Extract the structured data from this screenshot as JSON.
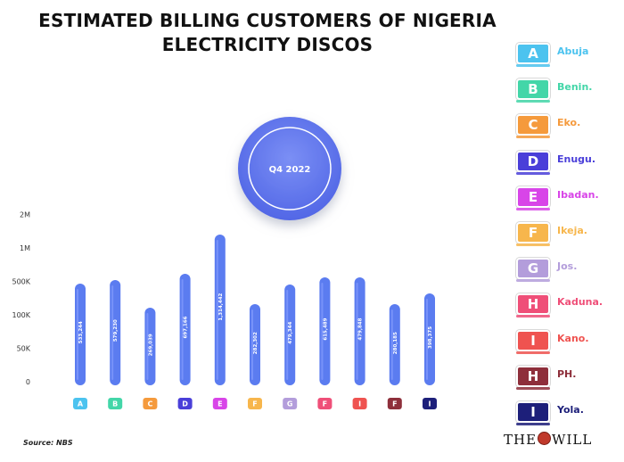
{
  "header": {
    "title_line1": "ESTIMATED BILLING CUSTOMERS OF NIGERIA",
    "title_line2": "ELECTRICITY DISCOS"
  },
  "period_badge": "Q4 2022",
  "legend": [
    {
      "letter": "A",
      "name": "Abuja",
      "color": "#4cc3ef"
    },
    {
      "letter": "B",
      "name": "Benin.",
      "color": "#43d6a8"
    },
    {
      "letter": "C",
      "name": "Eko.",
      "color": "#f59a3c"
    },
    {
      "letter": "D",
      "name": "Enugu.",
      "color": "#4a3fd9"
    },
    {
      "letter": "E",
      "name": "Ibadan.",
      "color": "#d845e8"
    },
    {
      "letter": "F",
      "name": "Ikeja.",
      "color": "#f7b64c"
    },
    {
      "letter": "G",
      "name": "Jos.",
      "color": "#b39ddb"
    },
    {
      "letter": "H",
      "name": "Kaduna.",
      "color": "#ef4f78"
    },
    {
      "letter": "I",
      "name": "Kano.",
      "color": "#ef5350"
    },
    {
      "letter": "H",
      "name": "PH.",
      "color": "#8e2f3b"
    },
    {
      "letter": "I",
      "name": "Yola.",
      "color": "#1d1f7a"
    }
  ],
  "source": "Source: NBS",
  "logo_left": "THE",
  "logo_right": "WILL",
  "chart_data": {
    "type": "bar",
    "y_tick_labels": [
      "0",
      "50K",
      "100K",
      "500K",
      "1M",
      "2M"
    ],
    "bar_color": "#5b7cf0",
    "categories": [
      "A",
      "B",
      "C",
      "D",
      "E",
      "F",
      "G",
      "F",
      "I",
      "F",
      "I"
    ],
    "category_colors": [
      "#4cc3ef",
      "#43d6a8",
      "#f59a3c",
      "#4a3fd9",
      "#d845e8",
      "#f7b64c",
      "#b39ddb",
      "#ef4f78",
      "#ef5350",
      "#8e2f3b",
      "#1d1f7a"
    ],
    "values": [
      533244,
      579230,
      269039,
      697166,
      1314442,
      282302,
      479344,
      615489,
      479848,
      280185,
      398375
    ],
    "value_labels": [
      "533,244",
      "579,230",
      "269,039",
      "697,166",
      "1,314,442",
      "282,302",
      "479,344",
      "615,489",
      "479,848",
      "280,185",
      "398,375"
    ]
  }
}
